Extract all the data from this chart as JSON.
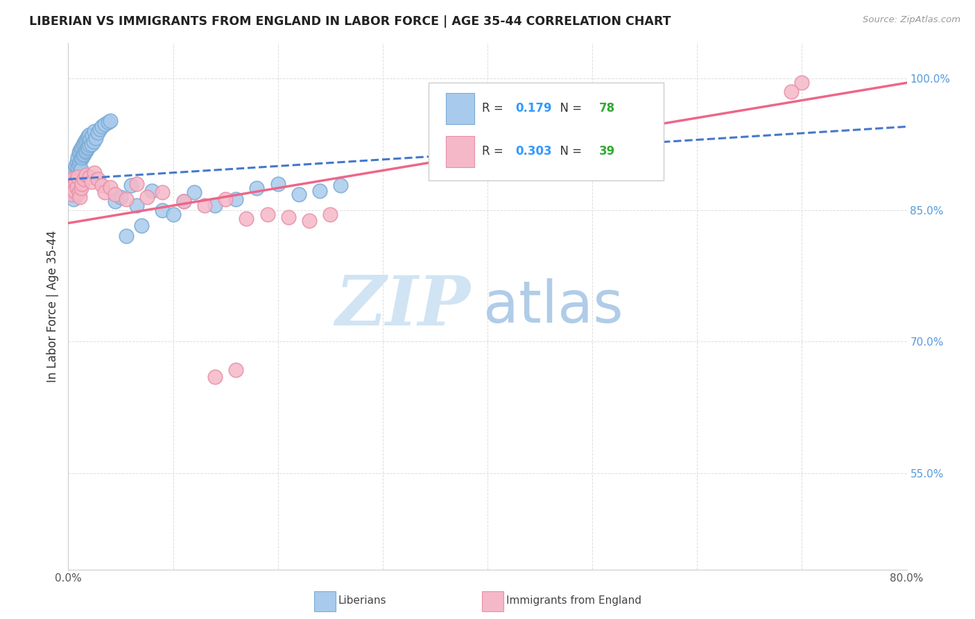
{
  "title": "LIBERIAN VS IMMIGRANTS FROM ENGLAND IN LABOR FORCE | AGE 35-44 CORRELATION CHART",
  "source_text": "Source: ZipAtlas.com",
  "ylabel_text": "In Labor Force | Age 35-44",
  "xlim": [
    0.0,
    0.8
  ],
  "ylim": [
    0.44,
    1.04
  ],
  "yticks": [
    0.55,
    0.7,
    0.85,
    1.0
  ],
  "ytick_labels": [
    "55.0%",
    "70.0%",
    "85.0%",
    "100.0%"
  ],
  "R_liberian": 0.179,
  "N_liberian": 78,
  "R_england": 0.303,
  "N_england": 39,
  "blue_color": "#A8CAEC",
  "blue_edge_color": "#7AABD4",
  "pink_color": "#F5B8C8",
  "pink_edge_color": "#E890A8",
  "blue_line_color": "#4477CC",
  "pink_line_color": "#EE6688",
  "legend_R_color": "#3399FF",
  "legend_N_color": "#33AA33",
  "watermark_zip": "ZIP",
  "watermark_atlas": "atlas",
  "watermark_color_zip": "#D0E4F4",
  "watermark_color_atlas": "#B8D4EC",
  "grid_color": "#DDDDDD",
  "ytick_color": "#5599DD",
  "title_color": "#222222",
  "source_color": "#999999",
  "lib_x": [
    0.001,
    0.002,
    0.003,
    0.003,
    0.004,
    0.004,
    0.005,
    0.005,
    0.005,
    0.006,
    0.006,
    0.006,
    0.007,
    0.007,
    0.007,
    0.008,
    0.008,
    0.008,
    0.008,
    0.009,
    0.009,
    0.009,
    0.01,
    0.01,
    0.01,
    0.01,
    0.011,
    0.011,
    0.011,
    0.012,
    0.012,
    0.012,
    0.013,
    0.013,
    0.014,
    0.014,
    0.015,
    0.015,
    0.016,
    0.016,
    0.017,
    0.017,
    0.018,
    0.018,
    0.019,
    0.019,
    0.02,
    0.02,
    0.021,
    0.022,
    0.023,
    0.024,
    0.025,
    0.026,
    0.028,
    0.03,
    0.032,
    0.035,
    0.038,
    0.04,
    0.045,
    0.05,
    0.055,
    0.06,
    0.065,
    0.07,
    0.08,
    0.09,
    0.1,
    0.11,
    0.12,
    0.14,
    0.16,
    0.18,
    0.2,
    0.22,
    0.24,
    0.26
  ],
  "lib_y": [
    0.87,
    0.875,
    0.88,
    0.868,
    0.885,
    0.872,
    0.89,
    0.878,
    0.862,
    0.895,
    0.882,
    0.87,
    0.9,
    0.888,
    0.876,
    0.905,
    0.892,
    0.88,
    0.868,
    0.91,
    0.898,
    0.886,
    0.915,
    0.902,
    0.89,
    0.878,
    0.918,
    0.906,
    0.894,
    0.92,
    0.908,
    0.896,
    0.922,
    0.91,
    0.924,
    0.912,
    0.926,
    0.914,
    0.928,
    0.916,
    0.93,
    0.918,
    0.932,
    0.92,
    0.934,
    0.922,
    0.936,
    0.924,
    0.93,
    0.925,
    0.935,
    0.928,
    0.94,
    0.932,
    0.938,
    0.942,
    0.945,
    0.948,
    0.95,
    0.952,
    0.86,
    0.865,
    0.82,
    0.878,
    0.855,
    0.832,
    0.872,
    0.85,
    0.845,
    0.86,
    0.87,
    0.855,
    0.862,
    0.875,
    0.88,
    0.868,
    0.872,
    0.878
  ],
  "eng_x": [
    0.001,
    0.002,
    0.003,
    0.004,
    0.005,
    0.006,
    0.007,
    0.008,
    0.009,
    0.01,
    0.011,
    0.012,
    0.013,
    0.015,
    0.017,
    0.02,
    0.022,
    0.025,
    0.028,
    0.032,
    0.035,
    0.04,
    0.045,
    0.055,
    0.065,
    0.075,
    0.09,
    0.11,
    0.13,
    0.15,
    0.17,
    0.19,
    0.21,
    0.23,
    0.25,
    0.14,
    0.16,
    0.7,
    0.69
  ],
  "eng_y": [
    0.875,
    0.88,
    0.868,
    0.885,
    0.878,
    0.872,
    0.882,
    0.876,
    0.888,
    0.87,
    0.865,
    0.875,
    0.88,
    0.885,
    0.89,
    0.888,
    0.882,
    0.892,
    0.885,
    0.878,
    0.87,
    0.876,
    0.868,
    0.862,
    0.88,
    0.865,
    0.87,
    0.86,
    0.855,
    0.862,
    0.84,
    0.845,
    0.842,
    0.838,
    0.845,
    0.66,
    0.668,
    0.995,
    0.985
  ]
}
